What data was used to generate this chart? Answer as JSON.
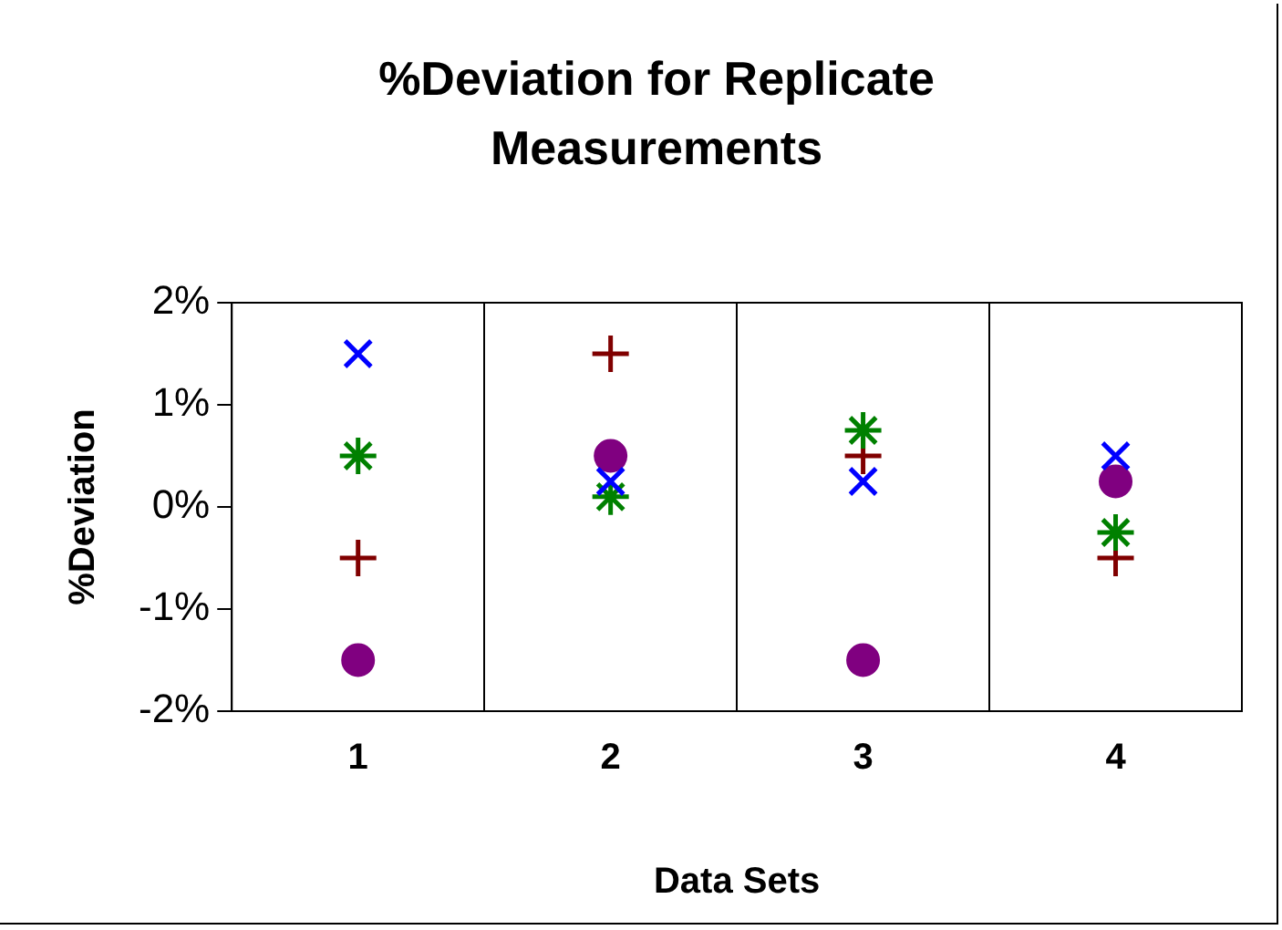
{
  "chart_data": {
    "type": "scatter",
    "title": "%Deviation for Replicate Measurements",
    "xlabel": "Data Sets",
    "ylabel": "%Deviation",
    "categories": [
      "1",
      "2",
      "3",
      "4"
    ],
    "series": [
      {
        "color": "#0000ff",
        "marker": "x",
        "values": [
          1.5,
          0.25,
          0.25,
          0.5
        ]
      },
      {
        "color": "#008000",
        "values": [
          0.5,
          0.1,
          0.75,
          -0.25
        ]
      },
      {
        "color": "#800000",
        "marker": "cross",
        "values": [
          -0.5,
          1.5,
          0.5,
          -0.5
        ]
      },
      {
        "color": "#800080",
        "marker": "circle",
        "values": [
          -1.5,
          0.5,
          -1.5,
          0.25
        ]
      }
    ],
    "ylim": [
      -2,
      2
    ],
    "yticks": [
      {
        "value": -2,
        "label": "-2%"
      },
      {
        "value": -1,
        "label": "-1%"
      },
      {
        "value": 0,
        "label": "0%"
      },
      {
        "value": 1,
        "label": "1%"
      },
      {
        "value": 2,
        "label": "2%"
      }
    ],
    "grid": "x",
    "legend": false
  }
}
